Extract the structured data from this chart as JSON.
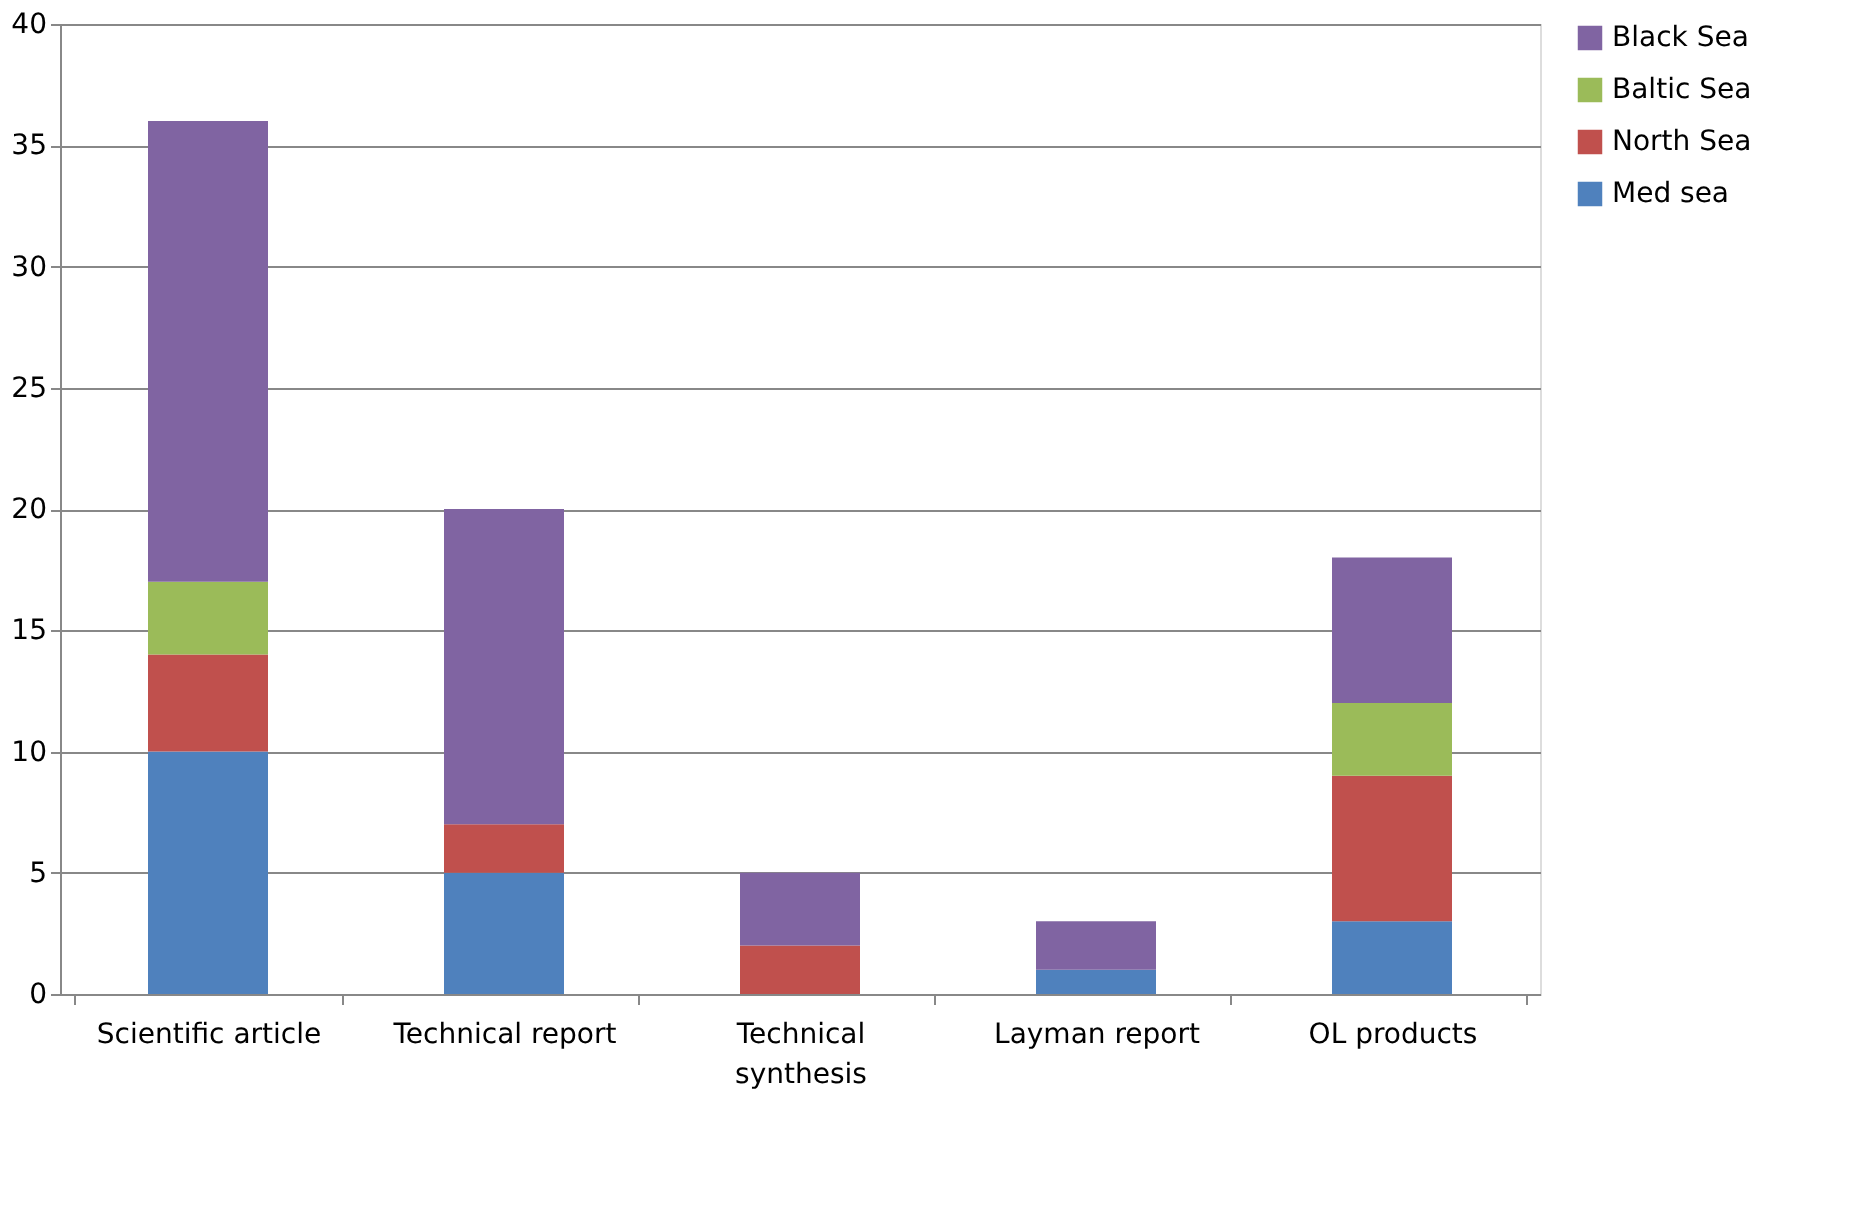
{
  "chart_data": {
    "type": "bar",
    "stacked": true,
    "categories": [
      "Scientific article",
      "Technical report",
      "Technical synthesis",
      "Layman report",
      "OL products"
    ],
    "series": [
      {
        "name": "Med sea",
        "color": "#4f81bd",
        "values": [
          10,
          5,
          0,
          1,
          3
        ]
      },
      {
        "name": "North Sea",
        "color": "#c0504d",
        "values": [
          4,
          2,
          2,
          0,
          6
        ]
      },
      {
        "name": "Baltic Sea",
        "color": "#9bbb59",
        "values": [
          3,
          0,
          0,
          0,
          3
        ]
      },
      {
        "name": "Black Sea",
        "color": "#8064a2",
        "values": [
          19,
          13,
          3,
          2,
          6
        ]
      }
    ],
    "ylim": [
      0,
      40
    ],
    "yticks": [
      0,
      5,
      10,
      15,
      20,
      25,
      30,
      35,
      40
    ],
    "grid": "y",
    "legend": "right"
  }
}
